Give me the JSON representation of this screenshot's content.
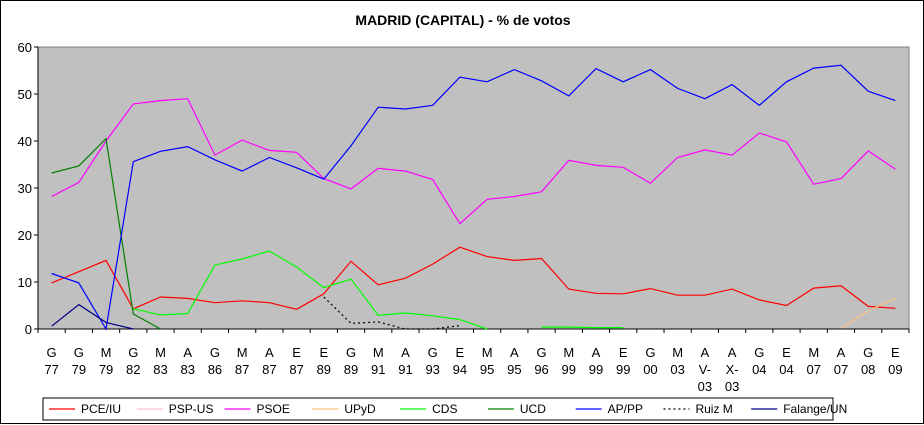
{
  "chart_data": {
    "type": "line",
    "title": "MADRID (CAPITAL) - % de votos",
    "xlabel": "",
    "ylabel": "",
    "ylim": [
      0,
      60
    ],
    "yticks": [
      0,
      10,
      20,
      30,
      40,
      50,
      60
    ],
    "grid": "off",
    "plot_background": "#c0c0c0",
    "legend_position": "bottom",
    "categories": [
      [
        "G",
        "77"
      ],
      [
        "G",
        "79"
      ],
      [
        "M",
        "79"
      ],
      [
        "G",
        "82"
      ],
      [
        "M",
        "83"
      ],
      [
        "A",
        "83"
      ],
      [
        "G",
        "86"
      ],
      [
        "M",
        "87"
      ],
      [
        "A",
        "87"
      ],
      [
        "E",
        "87"
      ],
      [
        "E",
        "89"
      ],
      [
        "G",
        "89"
      ],
      [
        "M",
        "91"
      ],
      [
        "A",
        "91"
      ],
      [
        "G",
        "93"
      ],
      [
        "E",
        "94"
      ],
      [
        "M",
        "95"
      ],
      [
        "A",
        "95"
      ],
      [
        "G",
        "96"
      ],
      [
        "M",
        "99"
      ],
      [
        "A",
        "99"
      ],
      [
        "E",
        "99"
      ],
      [
        "G",
        "00"
      ],
      [
        "M",
        "03"
      ],
      [
        "A",
        "V-",
        "03"
      ],
      [
        "A",
        "X-",
        "03"
      ],
      [
        "G",
        "04"
      ],
      [
        "E",
        "04"
      ],
      [
        "M",
        "07"
      ],
      [
        "A",
        "07"
      ],
      [
        "G",
        "08"
      ],
      [
        "E",
        "09"
      ]
    ],
    "series": [
      {
        "name": "PCE/IU",
        "color": "#ff0000",
        "dash": "",
        "values": [
          9.8,
          12.2,
          14.6,
          4.3,
          6.8,
          6.5,
          5.6,
          6.0,
          5.6,
          4.2,
          7.5,
          14.4,
          9.4,
          10.8,
          13.8,
          17.4,
          15.4,
          14.6,
          15.0,
          8.5,
          7.6,
          7.5,
          8.6,
          7.2,
          7.2,
          8.5,
          6.2,
          5.0,
          8.7,
          9.2,
          4.8,
          4.4
        ]
      },
      {
        "name": "PSP-US",
        "color": "#ffc0cb",
        "dash": "",
        "values": [
          9.6,
          null,
          null,
          null,
          null,
          null,
          null,
          null,
          null,
          null,
          null,
          null,
          null,
          null,
          null,
          null,
          null,
          null,
          null,
          null,
          null,
          null,
          null,
          null,
          null,
          null,
          null,
          null,
          null,
          null,
          null,
          null
        ]
      },
      {
        "name": "PSOE",
        "color": "#ff00ff",
        "dash": "",
        "values": [
          28.2,
          31.2,
          40.0,
          47.9,
          48.6,
          49.0,
          37.0,
          40.2,
          38.0,
          37.6,
          32.0,
          29.8,
          34.2,
          33.6,
          31.8,
          22.4,
          27.6,
          28.2,
          29.2,
          35.9,
          34.8,
          34.4,
          31.0,
          36.5,
          38.1,
          37.0,
          41.7,
          39.8,
          30.8,
          32.0,
          37.9,
          34.0
        ]
      },
      {
        "name": "UPyD",
        "color": "#ffc080",
        "dash": "",
        "values": [
          null,
          null,
          null,
          null,
          null,
          null,
          null,
          null,
          null,
          null,
          null,
          null,
          null,
          null,
          null,
          null,
          null,
          null,
          null,
          null,
          null,
          null,
          null,
          null,
          null,
          null,
          null,
          null,
          null,
          0.2,
          3.8,
          6.6
        ]
      },
      {
        "name": "CDS",
        "color": "#00ff00",
        "dash": "",
        "values": [
          null,
          null,
          null,
          4.3,
          3.0,
          3.3,
          13.6,
          14.9,
          16.6,
          13.2,
          8.8,
          10.6,
          2.9,
          3.4,
          2.8,
          2.0,
          0.0,
          null,
          0.4,
          0.4,
          0.3,
          0.3,
          null,
          null,
          null,
          null,
          null,
          null,
          null,
          null,
          null,
          null
        ]
      },
      {
        "name": "UCD",
        "color": "#008000",
        "dash": "",
        "values": [
          33.2,
          34.7,
          40.5,
          3.2,
          0.0,
          null,
          null,
          null,
          null,
          null,
          null,
          null,
          null,
          null,
          null,
          null,
          null,
          null,
          null,
          null,
          null,
          null,
          null,
          null,
          null,
          null,
          null,
          null,
          null,
          null,
          null,
          null
        ]
      },
      {
        "name": "AP/PP",
        "color": "#0000ff",
        "dash": "",
        "values": [
          11.8,
          9.8,
          0.0,
          35.6,
          37.8,
          38.8,
          36.0,
          33.6,
          36.5,
          34.3,
          31.9,
          39.0,
          47.2,
          46.8,
          47.6,
          53.6,
          52.6,
          55.2,
          52.8,
          49.6,
          55.4,
          52.6,
          55.2,
          51.2,
          49.0,
          52.0,
          47.6,
          52.6,
          55.5,
          56.1,
          50.6,
          48.6
        ]
      },
      {
        "name": "Ruiz M",
        "color": "#000000",
        "dash": "2,3",
        "values": [
          null,
          null,
          null,
          null,
          null,
          null,
          null,
          null,
          null,
          null,
          6.8,
          1.2,
          1.5,
          0.0,
          0.0,
          0.7,
          null,
          null,
          null,
          null,
          null,
          null,
          null,
          null,
          null,
          null,
          null,
          null,
          null,
          null,
          null,
          null
        ]
      },
      {
        "name": "Falange/UN",
        "color": "#000080",
        "dash": "",
        "values": [
          0.6,
          5.2,
          1.4,
          0.0,
          null,
          null,
          null,
          null,
          null,
          null,
          null,
          null,
          null,
          null,
          null,
          null,
          null,
          null,
          null,
          null,
          null,
          null,
          null,
          null,
          null,
          null,
          null,
          null,
          null,
          null,
          null,
          null
        ]
      }
    ]
  }
}
